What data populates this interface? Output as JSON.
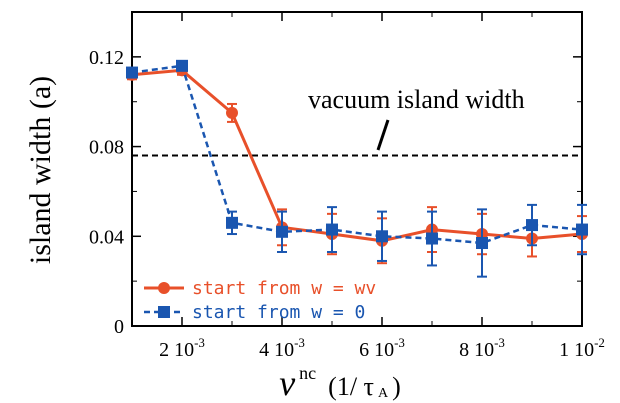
{
  "chart_data": {
    "type": "line",
    "title": "",
    "xlabel": {
      "symbol": "ν",
      "superscript": "nc",
      "unit_open": "(1/ τ",
      "unit_subscript": "A",
      "unit_close": ")"
    },
    "ylabel": "island width (a)",
    "xlim": [
      0.001,
      0.01
    ],
    "ylim": [
      0,
      0.14
    ],
    "x_ticks": [
      {
        "value": 0.002,
        "mant": "2",
        "exp": "-3"
      },
      {
        "value": 0.004,
        "mant": "4",
        "exp": "-3"
      },
      {
        "value": 0.006,
        "mant": "6",
        "exp": "-3"
      },
      {
        "value": 0.008,
        "mant": "8",
        "exp": "-3"
      },
      {
        "value": 0.01,
        "mant": "1",
        "exp": "-2"
      }
    ],
    "y_ticks": [
      {
        "value": 0,
        "label": "0"
      },
      {
        "value": 0.04,
        "label": "0.04"
      },
      {
        "value": 0.08,
        "label": "0.08"
      },
      {
        "value": 0.12,
        "label": "0.12"
      }
    ],
    "x_minor_ticks": [
      0.001,
      0.003,
      0.005,
      0.007,
      0.009
    ],
    "y_minor_ticks": [
      0.02,
      0.06,
      0.1
    ],
    "grid": false,
    "legend_position": "bottom-left",
    "series": [
      {
        "name": "start from w = wv",
        "color": "#e8502a",
        "marker": "circle",
        "dash": "solid",
        "x": [
          0.001,
          0.002,
          0.003,
          0.004,
          0.005,
          0.006,
          0.007,
          0.008,
          0.009,
          0.01
        ],
        "y": [
          0.112,
          0.114,
          0.095,
          0.044,
          0.041,
          0.038,
          0.043,
          0.041,
          0.039,
          0.041
        ],
        "err": [
          0.002,
          0.002,
          0.004,
          0.008,
          0.009,
          0.01,
          0.01,
          0.009,
          0.008,
          0.008
        ]
      },
      {
        "name": "start from w = 0",
        "color": "#1a56b0",
        "marker": "square",
        "dash": "dashed",
        "x": [
          0.001,
          0.002,
          0.003,
          0.004,
          0.005,
          0.006,
          0.007,
          0.008,
          0.009,
          0.01
        ],
        "y": [
          0.113,
          0.116,
          0.046,
          0.042,
          0.043,
          0.04,
          0.039,
          0.037,
          0.045,
          0.043
        ],
        "err": [
          0.002,
          0.002,
          0.005,
          0.009,
          0.01,
          0.011,
          0.012,
          0.015,
          0.009,
          0.011
        ]
      }
    ],
    "reference_line": {
      "y": 0.076,
      "label": "vacuum island width",
      "color": "#000000",
      "dash": "dashed"
    }
  }
}
